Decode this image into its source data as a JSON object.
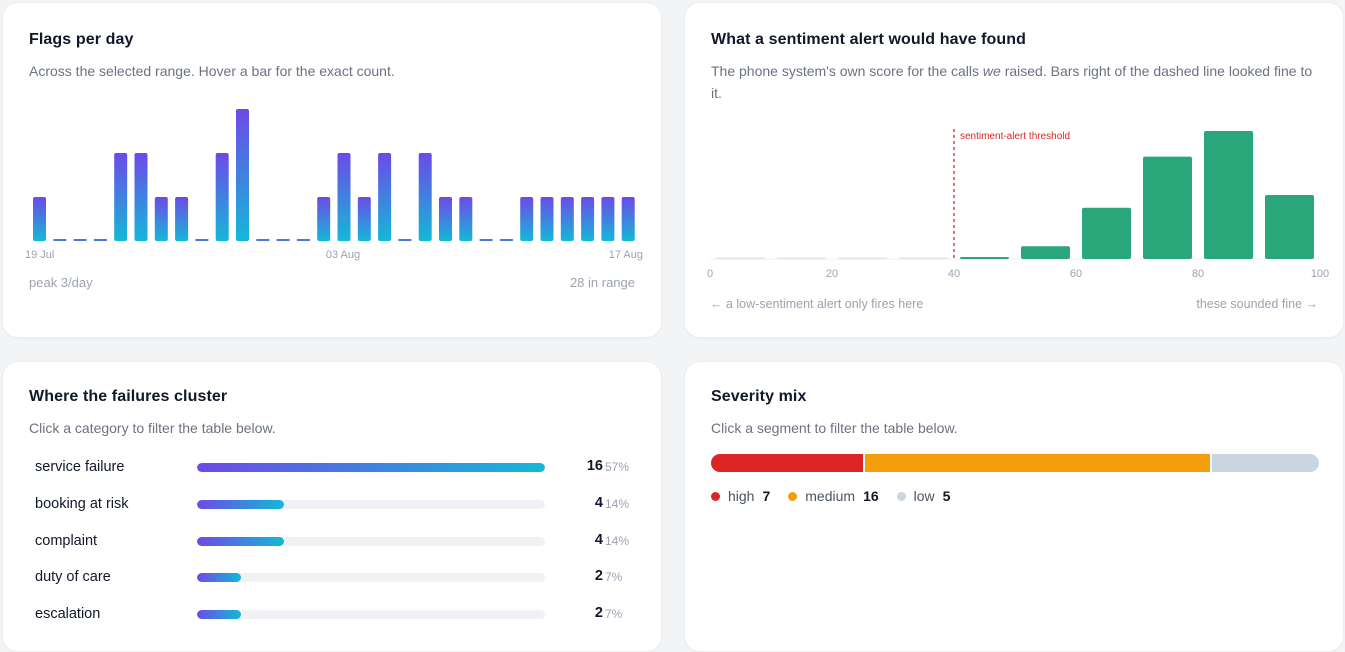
{
  "flags": {
    "title": "Flags per day",
    "subtitle": "Across the selected range. Hover a bar for the exact count.",
    "peak_text": "peak 3/day",
    "range_text": "28 in range",
    "chart_data": {
      "type": "bar",
      "x_tick_labels": [
        "19 Jul",
        "03 Aug",
        "17 Aug"
      ],
      "values": [
        1,
        0,
        0,
        0,
        2,
        2,
        1,
        1,
        0,
        2,
        3,
        0,
        0,
        0,
        1,
        2,
        1,
        2,
        0,
        2,
        1,
        1,
        0,
        0,
        1,
        1,
        1,
        1,
        1,
        1
      ],
      "ylim": [
        0,
        3
      ],
      "colors": {
        "top": "#6d4ae8",
        "bottom": "#14b8d8"
      }
    }
  },
  "sentiment": {
    "title": "What a sentiment alert would have found",
    "subtitle_before": "The phone system's own score for the calls ",
    "subtitle_em": "we",
    "subtitle_after": " raised. Bars right of the dashed line looked fine to it.",
    "threshold_label": "sentiment-alert threshold",
    "left_note": "← a low-sentiment alert only fires here",
    "right_note": "these sounded fine →",
    "chart_data": {
      "type": "bar",
      "bin_width": 10,
      "x": [
        0,
        10,
        20,
        30,
        40,
        50,
        60,
        70,
        80,
        90
      ],
      "values": [
        0,
        0,
        0,
        0,
        0.1,
        1,
        4,
        8,
        10,
        5
      ],
      "xlim": [
        0,
        100
      ],
      "x_ticks": [
        "0",
        "20",
        "40",
        "60",
        "80",
        "100"
      ],
      "threshold": 40,
      "bar_color": "#2aa77a",
      "threshold_color": "#dc2626"
    }
  },
  "cluster": {
    "title": "Where the failures cluster",
    "subtitle": "Click a category to filter the table below.",
    "max": 16,
    "items": [
      {
        "label": "service failure",
        "count": "16",
        "pct": "57%",
        "value": 16
      },
      {
        "label": "booking at risk",
        "count": "4",
        "pct": "14%",
        "value": 4
      },
      {
        "label": "complaint",
        "count": "4",
        "pct": "14%",
        "value": 4
      },
      {
        "label": "duty of care",
        "count": "2",
        "pct": "7%",
        "value": 2
      },
      {
        "label": "escalation",
        "count": "2",
        "pct": "7%",
        "value": 2
      }
    ]
  },
  "severity": {
    "title": "Severity mix",
    "subtitle": "Click a segment to filter the table below.",
    "segments": [
      {
        "label": "high",
        "count": "7",
        "value": 7,
        "color": "#dc2626"
      },
      {
        "label": "medium",
        "count": "16",
        "value": 16,
        "color": "#f59e0b"
      },
      {
        "label": "low",
        "count": "5",
        "value": 5,
        "color": "#cbd5e1"
      }
    ]
  }
}
